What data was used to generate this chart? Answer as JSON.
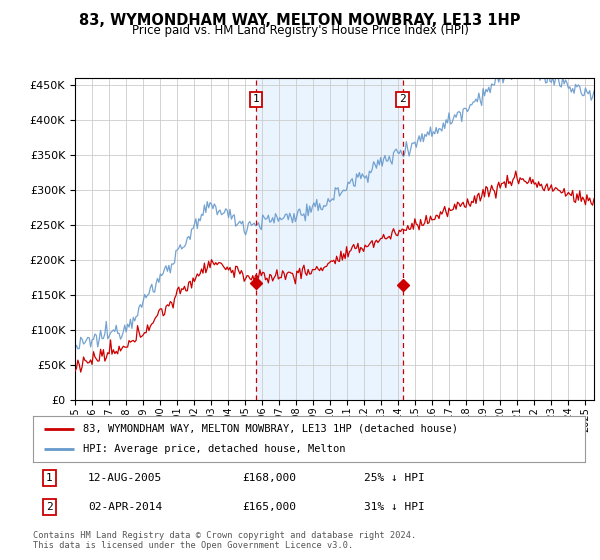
{
  "title": "83, WYMONDHAM WAY, MELTON MOWBRAY, LE13 1HP",
  "subtitle": "Price paid vs. HM Land Registry's House Price Index (HPI)",
  "ylim": [
    0,
    460000
  ],
  "yticks": [
    0,
    50000,
    100000,
    150000,
    200000,
    250000,
    300000,
    350000,
    400000,
    450000
  ],
  "xlim_start": 1995.0,
  "xlim_end": 2025.5,
  "transaction1_x": 2005.617,
  "transaction1_y": 168000,
  "transaction1_label": "1",
  "transaction1_date": "12-AUG-2005",
  "transaction1_price": "£168,000",
  "transaction1_note": "25% ↓ HPI",
  "transaction2_x": 2014.25,
  "transaction2_y": 165000,
  "transaction2_label": "2",
  "transaction2_date": "02-APR-2014",
  "transaction2_price": "£165,000",
  "transaction2_note": "31% ↓ HPI",
  "hpi_color": "#6699cc",
  "price_color": "#cc0000",
  "marker_color": "#cc0000",
  "vline_color": "#cc0000",
  "shading_color": "#ddeeff",
  "grid_color": "#cccccc",
  "legend_house": "83, WYMONDHAM WAY, MELTON MOWBRAY, LE13 1HP (detached house)",
  "legend_hpi": "HPI: Average price, detached house, Melton",
  "footer": "Contains HM Land Registry data © Crown copyright and database right 2024.\nThis data is licensed under the Open Government Licence v3.0.",
  "background_color": "#ffffff"
}
